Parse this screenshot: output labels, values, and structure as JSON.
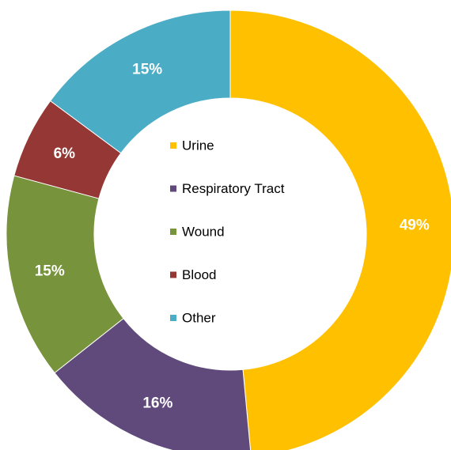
{
  "chart_data": {
    "type": "pie",
    "variant": "donut",
    "title": "",
    "categories": [
      "Urine",
      "Respiratory Tract",
      "Wound",
      "Blood",
      "Other"
    ],
    "values": [
      49,
      16,
      15,
      6,
      15
    ],
    "labels": [
      "49%",
      "16%",
      "15%",
      "6%",
      "15%"
    ],
    "colors": [
      "#FFC000",
      "#604A7B",
      "#77933C",
      "#953735",
      "#4BACC6"
    ],
    "legend": {
      "placement": "center",
      "entries": [
        "Urine",
        "Respiratory Tract",
        "Wound",
        "Blood",
        "Other"
      ]
    },
    "start": "top",
    "direction": "clockwise"
  }
}
